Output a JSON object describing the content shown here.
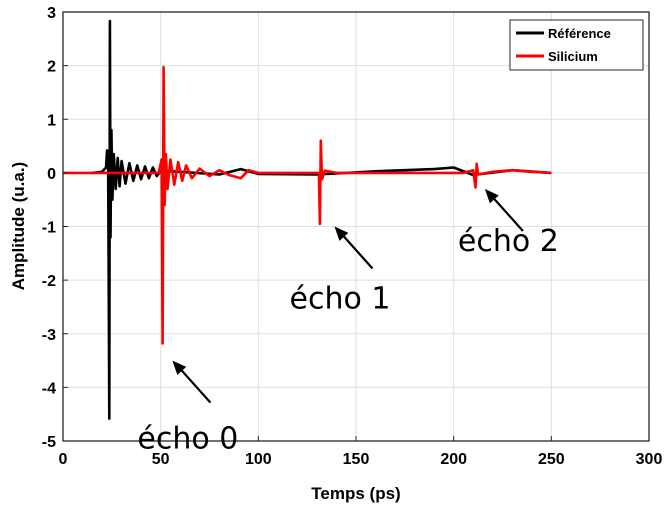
{
  "chart_data": {
    "type": "line",
    "title": "",
    "xlabel": "Temps (ps)",
    "ylabel": "Amplitude (u.a.)",
    "xlim": [
      0,
      300
    ],
    "ylim": [
      -5,
      3
    ],
    "xticks": [
      0,
      50,
      100,
      150,
      200,
      250,
      300
    ],
    "yticks": [
      -5,
      -4,
      -3,
      -2,
      -1,
      0,
      1,
      2,
      3
    ],
    "grid": true,
    "legend_position": "top-right",
    "series": [
      {
        "name": "Référence",
        "color": "#000000",
        "x_range": [
          15,
          250
        ],
        "points": [
          [
            15,
            0
          ],
          [
            20,
            0.02
          ],
          [
            22,
            0.1
          ],
          [
            22.6,
            0.42
          ],
          [
            23.1,
            0.3
          ],
          [
            23.4,
            -2.0
          ],
          [
            23.7,
            -4.58
          ],
          [
            24.0,
            2.83
          ],
          [
            24.3,
            -1.2
          ],
          [
            24.8,
            0.8
          ],
          [
            25.3,
            -0.5
          ],
          [
            26,
            0.35
          ],
          [
            27,
            -0.3
          ],
          [
            28,
            0.28
          ],
          [
            29,
            -0.25
          ],
          [
            30,
            0.22
          ],
          [
            32,
            -0.2
          ],
          [
            34,
            0.18
          ],
          [
            36,
            -0.15
          ],
          [
            38,
            0.14
          ],
          [
            40,
            -0.12
          ],
          [
            42,
            0.12
          ],
          [
            44,
            -0.1
          ],
          [
            46,
            0.1
          ],
          [
            48,
            -0.06
          ],
          [
            50,
            0.04
          ],
          [
            60,
            0.02
          ],
          [
            80,
            -0.03
          ],
          [
            91,
            0.07
          ],
          [
            100,
            -0.02
          ],
          [
            130,
            -0.03
          ],
          [
            160,
            0.03
          ],
          [
            190,
            0.07
          ],
          [
            200,
            0.1
          ],
          [
            210,
            -0.04
          ],
          [
            230,
            0.05
          ],
          [
            250,
            0
          ]
        ]
      },
      {
        "name": "Silicium",
        "color": "#ff0000",
        "x_range": [
          0,
          250
        ],
        "points": [
          [
            0,
            0
          ],
          [
            49,
            0
          ],
          [
            50.5,
            0.25
          ],
          [
            51.0,
            -3.18
          ],
          [
            51.5,
            1.97
          ],
          [
            52.0,
            -0.6
          ],
          [
            52.7,
            0.35
          ],
          [
            53.5,
            -0.3
          ],
          [
            55,
            0.25
          ],
          [
            57,
            -0.22
          ],
          [
            59,
            0.2
          ],
          [
            61,
            -0.15
          ],
          [
            63,
            0.14
          ],
          [
            66,
            -0.1
          ],
          [
            70,
            0.08
          ],
          [
            75,
            -0.06
          ],
          [
            80,
            0.05
          ],
          [
            85,
            -0.04
          ],
          [
            91,
            -0.1
          ],
          [
            95,
            0.05
          ],
          [
            100,
            0
          ],
          [
            131.0,
            0
          ],
          [
            131.5,
            -0.95
          ],
          [
            132.0,
            0.6
          ],
          [
            132.6,
            -0.12
          ],
          [
            134,
            0.04
          ],
          [
            140,
            0
          ],
          [
            205,
            0
          ],
          [
            210,
            0.05
          ],
          [
            211.2,
            -0.27
          ],
          [
            211.8,
            0.17
          ],
          [
            212.5,
            -0.03
          ],
          [
            220,
            0.02
          ],
          [
            230,
            0.05
          ],
          [
            240,
            0.02
          ],
          [
            250,
            0
          ]
        ]
      }
    ],
    "annotations": [
      {
        "text": "écho 0",
        "points_to": [
          56,
          -3.5
        ]
      },
      {
        "text": "écho 1",
        "points_to": [
          139,
          -1.0
        ]
      },
      {
        "text": "écho 2",
        "points_to": [
          216,
          -0.3
        ]
      }
    ]
  }
}
